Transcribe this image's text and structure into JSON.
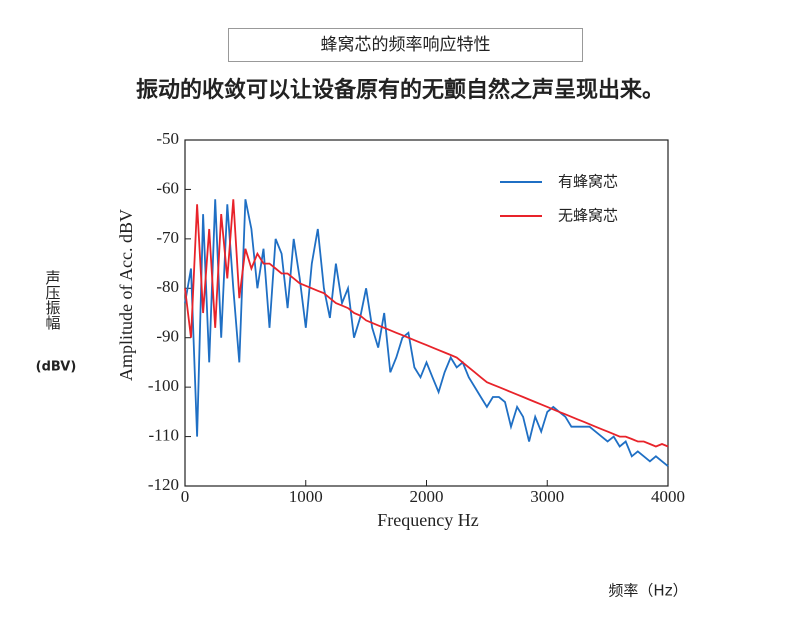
{
  "header": {
    "title": "蜂窝芯的频率响应特性",
    "subtitle": "振动的收敛可以让设备原有的无颤自然之声呈现出来。"
  },
  "side_labels": {
    "y_caption": "声压振幅",
    "y_unit": "(dBV)",
    "x_caption": "频率（Hz）"
  },
  "chart_data": {
    "type": "line",
    "xlabel": "Frequency Hz",
    "ylabel": "Amplitude of Acc. dBV",
    "xlim": [
      0,
      4000
    ],
    "ylim": [
      -120,
      -50
    ],
    "xticks": [
      0,
      1000,
      2000,
      3000,
      4000
    ],
    "yticks": [
      -50,
      -60,
      -70,
      -80,
      -90,
      -100,
      -110,
      -120
    ],
    "legend": "upper right",
    "x": [
      0,
      50,
      100,
      150,
      200,
      250,
      300,
      350,
      400,
      450,
      500,
      550,
      600,
      650,
      700,
      750,
      800,
      850,
      900,
      950,
      1000,
      1050,
      1100,
      1150,
      1200,
      1250,
      1300,
      1350,
      1400,
      1450,
      1500,
      1550,
      1600,
      1650,
      1700,
      1750,
      1800,
      1850,
      1900,
      1950,
      2000,
      2050,
      2100,
      2150,
      2200,
      2250,
      2300,
      2350,
      2400,
      2450,
      2500,
      2550,
      2600,
      2650,
      2700,
      2750,
      2800,
      2850,
      2900,
      2950,
      3000,
      3050,
      3100,
      3150,
      3200,
      3250,
      3300,
      3350,
      3400,
      3450,
      3500,
      3550,
      3600,
      3650,
      3700,
      3750,
      3800,
      3850,
      3900,
      3950,
      4000
    ],
    "series": [
      {
        "name": "有蜂窝芯",
        "color": "#1f6fc4",
        "values": [
          -83,
          -76,
          -110,
          -65,
          -95,
          -62,
          -90,
          -63,
          -80,
          -95,
          -62,
          -68,
          -80,
          -72,
          -88,
          -70,
          -73,
          -84,
          -70,
          -78,
          -88,
          -75,
          -68,
          -80,
          -86,
          -75,
          -83,
          -80,
          -90,
          -86,
          -80,
          -88,
          -92,
          -85,
          -97,
          -94,
          -90,
          -89,
          -96,
          -98,
          -95,
          -98,
          -101,
          -97,
          -94,
          -96,
          -95,
          -98,
          -100,
          -102,
          -104,
          -102,
          -102,
          -103,
          -108,
          -104,
          -106,
          -111,
          -106,
          -109,
          -105,
          -104,
          -105,
          -106,
          -108,
          -108,
          -108,
          -108,
          -109,
          -110,
          -111,
          -110,
          -112,
          -111,
          -114,
          -113,
          -114,
          -115,
          -114,
          -115,
          -116
        ]
      },
      {
        "name": "无蜂窝芯",
        "color": "#e8232a",
        "values": [
          -80,
          -90,
          -63,
          -85,
          -68,
          -88,
          -65,
          -78,
          -62,
          -82,
          -72,
          -76,
          -73,
          -75,
          -75,
          -76,
          -77,
          -77,
          -78,
          -79,
          -79.5,
          -80,
          -80.5,
          -81,
          -82,
          -83,
          -83.5,
          -84,
          -85,
          -85.5,
          -86.5,
          -87,
          -87.5,
          -88,
          -88.5,
          -89,
          -89.5,
          -90,
          -90.5,
          -91,
          -91.5,
          -92,
          -92.5,
          -93,
          -93.5,
          -94,
          -95,
          -96,
          -97,
          -98,
          -99,
          -99.5,
          -100,
          -100.5,
          -101,
          -101.5,
          -102,
          -102.5,
          -103,
          -103.5,
          -104,
          -104.5,
          -105,
          -105.5,
          -106,
          -106.5,
          -107,
          -107.5,
          -108,
          -108.5,
          -109,
          -109.5,
          -110,
          -110,
          -110.5,
          -111,
          -111,
          -111.5,
          -112,
          -111.5,
          -112
        ]
      }
    ]
  }
}
